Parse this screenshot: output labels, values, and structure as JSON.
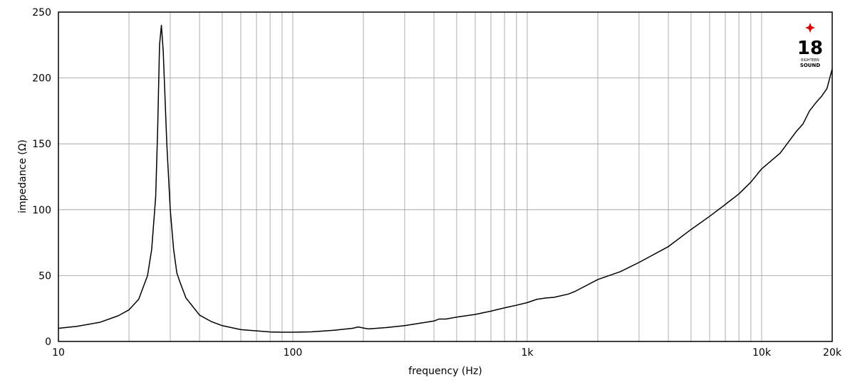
{
  "chart_data": {
    "type": "line",
    "x_label": "frequency (Hz)",
    "y_label": "impedance (Ω)",
    "xscale": "log",
    "xlim": [
      10,
      20000
    ],
    "ylim": [
      0,
      250
    ],
    "xticks": [
      10,
      100,
      {
        "value": 1000,
        "label": "1k"
      },
      {
        "value": 10000,
        "label": "10k"
      },
      {
        "value": 20000,
        "label": "20k"
      }
    ],
    "xgrid_minor": [
      20,
      30,
      40,
      50,
      60,
      70,
      80,
      90,
      200,
      300,
      400,
      500,
      600,
      700,
      800,
      900,
      2000,
      3000,
      4000,
      5000,
      6000,
      7000,
      8000,
      9000
    ],
    "yticks": [
      0,
      50,
      100,
      150,
      200,
      250
    ],
    "grid": true,
    "logo": {
      "number": "18",
      "line1": "EIGHTEEN",
      "line2": "SOUND"
    },
    "series": [
      {
        "color": "#000000",
        "x": [
          10,
          12,
          15,
          18,
          20,
          22,
          24,
          25,
          26,
          26.5,
          27,
          27.5,
          28,
          29,
          30,
          31,
          32,
          33,
          35,
          40,
          45,
          50,
          60,
          70,
          80,
          90,
          100,
          120,
          150,
          180,
          190,
          200,
          210,
          250,
          300,
          400,
          420,
          450,
          500,
          600,
          700,
          800,
          900,
          1000,
          1100,
          1200,
          1300,
          1500,
          1600,
          2000,
          2500,
          3000,
          4000,
          5000,
          6000,
          7000,
          8000,
          9000,
          10000,
          12000,
          14000,
          15000,
          16000,
          17000,
          18000,
          19000,
          20000
        ],
        "values": [
          10,
          11.5,
          14.5,
          19.5,
          24,
          32,
          50,
          70,
          110,
          160,
          225,
          240,
          220,
          150,
          100,
          70,
          52,
          45,
          33,
          20,
          15,
          12,
          9,
          8,
          7.2,
          7,
          7,
          7.3,
          8.5,
          10,
          11,
          10.2,
          9.5,
          10.5,
          12,
          15.5,
          17,
          17,
          18.5,
          20.5,
          23,
          25.5,
          27.5,
          29.5,
          32,
          33,
          33.5,
          36,
          38,
          47,
          53,
          60,
          72,
          85,
          95,
          104,
          112,
          121,
          131,
          143,
          159,
          165,
          175,
          181,
          186,
          192,
          207
        ]
      }
    ]
  }
}
